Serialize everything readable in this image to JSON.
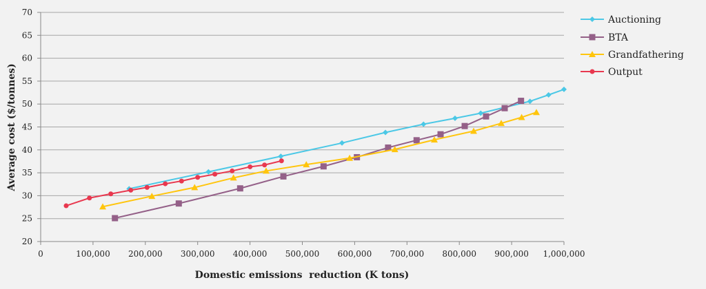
{
  "chart_data": {
    "type": "line",
    "xlabel": "Domestic emissions  reduction (K tons)",
    "ylabel": "Average cost ($/tonnes)",
    "xlim": [
      0,
      1000000
    ],
    "ylim": [
      20,
      70
    ],
    "x_ticks": [
      "0",
      "100,000",
      "200,000",
      "300,000",
      "400,000",
      "500,000",
      "600,000",
      "700,000",
      "800,000",
      "900,000",
      "1,000,000"
    ],
    "y_ticks": [
      "20",
      "25",
      "30",
      "35",
      "40",
      "45",
      "50",
      "55",
      "60",
      "65",
      "70"
    ],
    "grid": "horizontal",
    "legend_position": "right",
    "series": [
      {
        "name": "Auctioning",
        "color": "#4bc8e6",
        "marker": "diamond",
        "x": [
          169000,
          320600,
          458900,
          575800,
          658800,
          731600,
          791800,
          840900,
          935000,
          970600,
          1000000
        ],
        "y": [
          31.5,
          35.2,
          38.6,
          41.5,
          43.8,
          45.6,
          46.9,
          48.0,
          50.6,
          52.0,
          53.2
        ]
      },
      {
        "name": "BTA",
        "color": "#946088",
        "marker": "square",
        "x": [
          141900,
          263900,
          381200,
          463800,
          540600,
          604300,
          663900,
          718400,
          764200,
          810300,
          851100,
          886700,
          917900
        ],
        "y": [
          25.1,
          28.3,
          31.6,
          34.2,
          36.4,
          38.4,
          40.5,
          42.1,
          43.4,
          45.2,
          47.3,
          49.1,
          50.7
        ]
      },
      {
        "name": "Grandfathering",
        "color": "#ffc50d",
        "marker": "triangle",
        "x": [
          118600,
          212500,
          294200,
          368500,
          430800,
          507600,
          590400,
          676800,
          752300,
          827400,
          880100,
          919100,
          947300
        ],
        "y": [
          27.6,
          29.9,
          31.8,
          33.9,
          35.4,
          36.8,
          38.2,
          40.1,
          42.2,
          44.1,
          45.8,
          47.1,
          48.2
        ]
      },
      {
        "name": "Output",
        "color": "#e8384f",
        "marker": "circle",
        "x": [
          48700,
          93200,
          134000,
          172200,
          203300,
          238100,
          269200,
          300000,
          332900,
          365900,
          400100,
          427800,
          460200
        ],
        "y": [
          27.8,
          29.5,
          30.4,
          31.2,
          31.8,
          32.6,
          33.2,
          34.0,
          34.7,
          35.4,
          36.3,
          36.7,
          37.6
        ]
      }
    ]
  }
}
